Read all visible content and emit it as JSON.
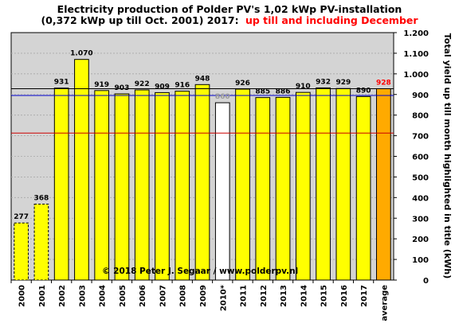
{
  "chart_data": {
    "type": "bar",
    "title_line1": "Electricity production  of Polder PV's 1,02 kWp PV-installation",
    "title_line2_black": "(0,372 kWp up till Oct. 2001) 2017:",
    "title_line2_red": "up till and including  December",
    "ylabel": "Total yield up till month highlighted in title (kWh)",
    "copyright": "© 2018 Peter J. Segaar / www.polderpv.nl",
    "categories": [
      "2000",
      "2001",
      "2002",
      "2003",
      "2004",
      "2005",
      "2006",
      "2007",
      "2008",
      "2009",
      "2010*",
      "2011",
      "2012",
      "2013",
      "2014",
      "2015",
      "2016",
      "2017",
      "average"
    ],
    "values": [
      277,
      368,
      931,
      1070,
      919,
      903,
      922,
      909,
      916,
      948,
      860,
      926,
      885,
      886,
      910,
      932,
      929,
      890,
      928
    ],
    "value_labels": [
      "277",
      "368",
      "931",
      "1.070",
      "919",
      "903",
      "922",
      "909",
      "916",
      "948",
      "860",
      "926",
      "885",
      "886",
      "910",
      "932",
      "929",
      "890",
      "928"
    ],
    "bar_styles": [
      "dashed",
      "dashed",
      "normal",
      "normal",
      "normal",
      "normal",
      "normal",
      "normal",
      "normal",
      "normal",
      "highlight",
      "normal",
      "normal",
      "normal",
      "normal",
      "normal",
      "normal",
      "normal",
      "average"
    ],
    "yticks": [
      0,
      100,
      200,
      300,
      400,
      500,
      600,
      700,
      800,
      900,
      1000,
      1100,
      1200
    ],
    "ytick_labels": [
      "0",
      "100",
      "200",
      "300",
      "400",
      "500",
      "600",
      "700",
      "800",
      "900",
      "1.000",
      "1.100",
      "1.200"
    ],
    "ylim": [
      0,
      1200
    ],
    "reference_lines": [
      {
        "value": 928,
        "color": "#000000"
      },
      {
        "value": 895,
        "color": "#0000cc"
      },
      {
        "value": 713,
        "color": "#cc0000"
      }
    ],
    "colors": {
      "bar": "#ffff00",
      "bar_highlight": "#ffffff",
      "bar_average": "#ffaa00",
      "plot_bg": "#d4d4d4",
      "label_normal": "#000000",
      "label_highlight": "#999999",
      "label_average": "#ff0000"
    },
    "grid": true
  }
}
